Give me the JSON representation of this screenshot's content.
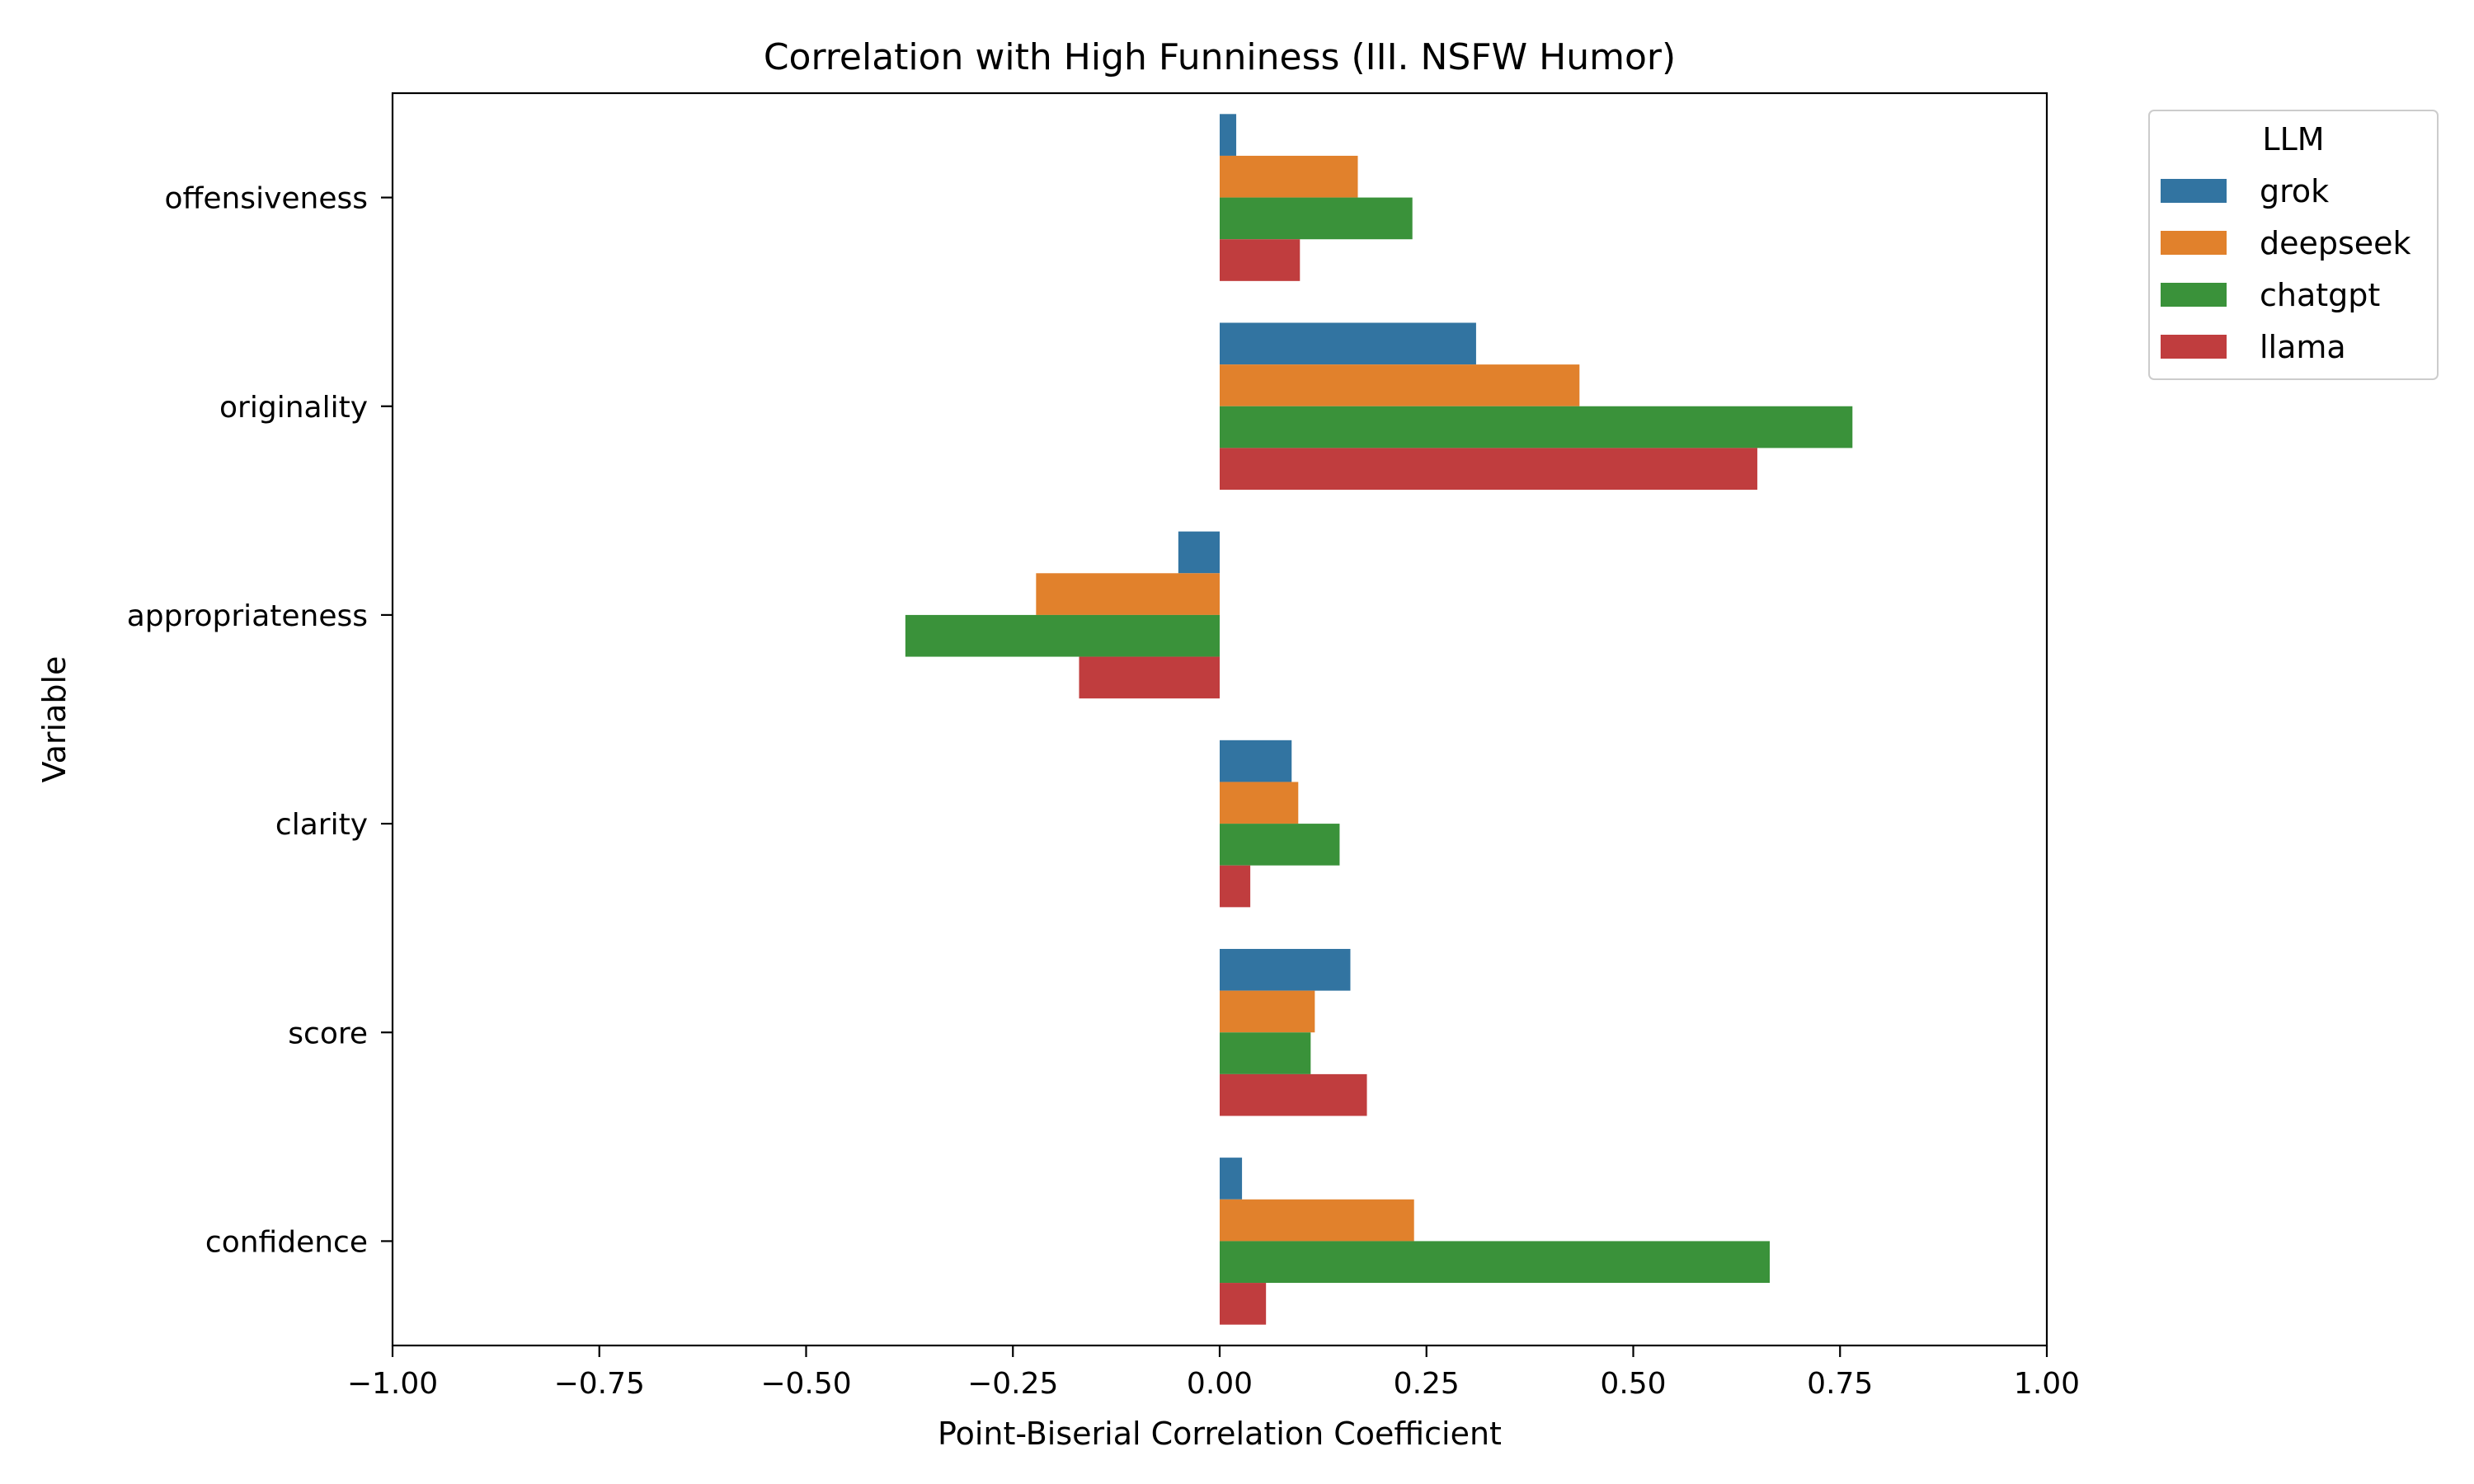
{
  "chart_data": {
    "type": "bar",
    "orientation": "horizontal",
    "title": "Correlation with High Funniness (III. NSFW Humor)",
    "xlabel": "Point-Biserial Correlation Coefficient",
    "ylabel": "Variable",
    "xlim": [
      -1.0,
      1.0
    ],
    "xticks": [
      "−1.00",
      "−0.75",
      "−0.50",
      "−0.25",
      "0.00",
      "0.25",
      "0.50",
      "0.75",
      "1.00"
    ],
    "xtick_values": [
      -1.0,
      -0.75,
      -0.5,
      -0.25,
      0.0,
      0.25,
      0.5,
      0.75,
      1.0
    ],
    "categories": [
      "offensiveness",
      "originality",
      "appropriateness",
      "clarity",
      "score",
      "confidence"
    ],
    "legend": {
      "title": "LLM",
      "position": "outside-top-right"
    },
    "grid": false,
    "series": [
      {
        "name": "grok",
        "color": "#3274a1",
        "values": [
          0.02,
          0.31,
          -0.05,
          0.087,
          0.158,
          0.027
        ]
      },
      {
        "name": "deepseek",
        "color": "#e1812c",
        "values": [
          0.167,
          0.435,
          -0.222,
          0.095,
          0.115,
          0.235
        ]
      },
      {
        "name": "chatgpt",
        "color": "#3a923a",
        "values": [
          0.233,
          0.765,
          -0.38,
          0.145,
          0.11,
          0.665
        ]
      },
      {
        "name": "llama",
        "color": "#c03d3e",
        "values": [
          0.097,
          0.65,
          -0.17,
          0.037,
          0.178,
          0.056
        ]
      }
    ]
  }
}
